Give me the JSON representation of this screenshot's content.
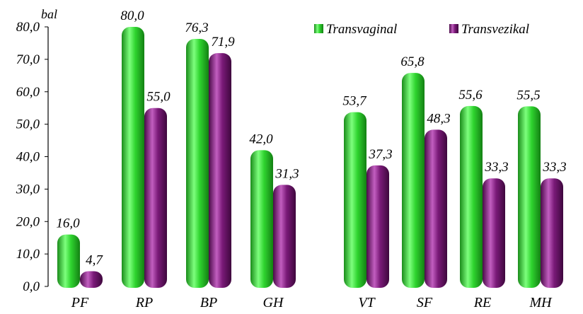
{
  "chart_data": {
    "type": "bar",
    "unit_label": "bal",
    "categories": [
      "PF",
      "RP",
      "BP",
      "GH",
      "VT",
      "SF",
      "RE",
      "MH"
    ],
    "group_gap_after": "GH",
    "ylim": [
      0,
      80
    ],
    "yticks": [
      "0,0",
      "10,0",
      "20,0",
      "30,0",
      "40,0",
      "50,0",
      "60,0",
      "70,0",
      "80,0"
    ],
    "grid": false,
    "legend_position": "top-right",
    "series": [
      {
        "name": "Transvaginal",
        "color": "#2fd42f",
        "values": [
          16.0,
          80.0,
          76.3,
          42.0,
          53.7,
          65.8,
          55.6,
          55.5
        ],
        "labels": [
          "16,0",
          "80,0",
          "76,3",
          "42,0",
          "53,7",
          "65,8",
          "55,6",
          "55,5"
        ]
      },
      {
        "name": "Transvezikal",
        "color": "#7a1a78",
        "values": [
          4.7,
          55.0,
          71.9,
          31.3,
          37.3,
          48.3,
          33.3,
          33.3
        ],
        "labels": [
          "4,7",
          "55,0",
          "71,9",
          "31,3",
          "37,3",
          "48,3",
          "33,3",
          "33,3"
        ]
      }
    ]
  }
}
